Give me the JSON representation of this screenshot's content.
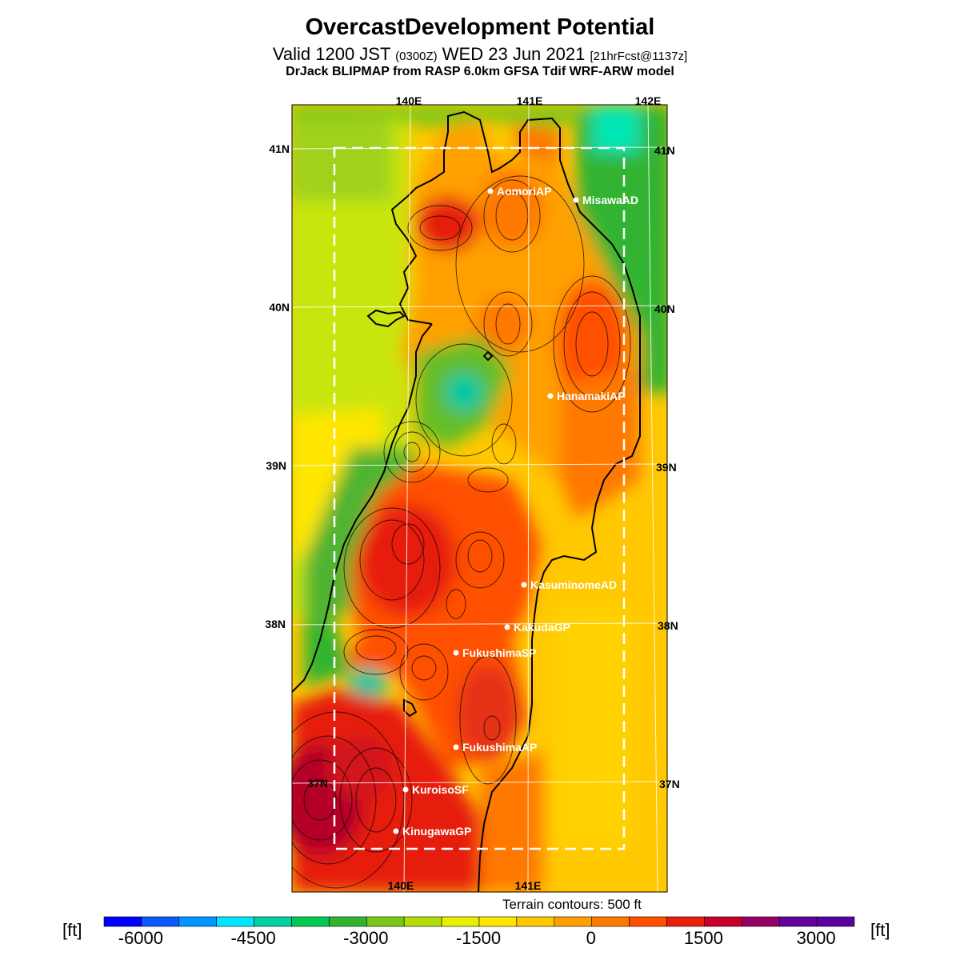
{
  "header": {
    "title": "OvercastDevelopment Potential",
    "valid_prefix": "Valid 1200 JST",
    "valid_small1": "(0300Z)",
    "valid_date": "WED 23 Jun 2021",
    "valid_small2": "[21hrFcst@1137z]",
    "model_line": "DrJack BLIPMAP from RASP 6.0km GFSA Tdif WRF-ARW model"
  },
  "axes": {
    "lon_top": [
      "140E",
      "141E",
      "142E"
    ],
    "lon_bottom": [
      "140E",
      "141E"
    ],
    "lat_left": [
      "41N",
      "40N",
      "39N",
      "38N",
      "37N"
    ],
    "lat_right": [
      "41N",
      "40N",
      "39N",
      "38N",
      "37N"
    ]
  },
  "stations": [
    {
      "name": "AomoriAP"
    },
    {
      "name": "MisawaAD"
    },
    {
      "name": "HanamakiAP"
    },
    {
      "name": "KasuminomeAD"
    },
    {
      "name": "KakudaGP"
    },
    {
      "name": "FukushimaSP"
    },
    {
      "name": "FukushimaAP"
    },
    {
      "name": "KuroisoSF"
    },
    {
      "name": "KinugawaGP"
    }
  ],
  "terrain_note": "Terrain contours: 500 ft",
  "colorbar": {
    "unit": "[ft]",
    "tick_labels": [
      "-6000",
      "-4500",
      "-3000",
      "-1500",
      "0",
      "1500",
      "3000"
    ],
    "colors": [
      "#0000ff",
      "#0a5aff",
      "#0096ff",
      "#00e6ff",
      "#00d2a0",
      "#00c850",
      "#32b432",
      "#78c814",
      "#b4dc0a",
      "#e6f000",
      "#ffe600",
      "#ffc800",
      "#ffa000",
      "#ff7800",
      "#ff5000",
      "#e61e0a",
      "#c80028",
      "#960064",
      "#64009b",
      "#5a00a0"
    ]
  }
}
